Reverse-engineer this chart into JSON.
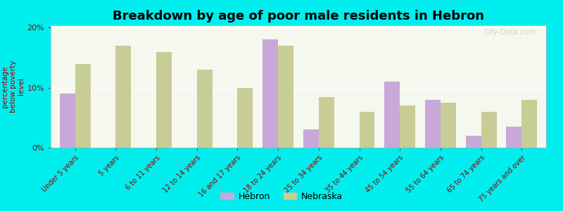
{
  "title": "Breakdown by age of poor male residents in Hebron",
  "ylabel": "percentage\nbelow poverty\nlevel",
  "categories": [
    "Under 5 years",
    "5 years",
    "6 to 11 years",
    "12 to 14 years",
    "16 and 17 years",
    "18 to 24 years",
    "25 to 34 years",
    "35 to 44 years",
    "45 to 54 years",
    "55 to 64 years",
    "65 to 74 years",
    "75 years and over"
  ],
  "hebron": [
    9.0,
    0.0,
    0.0,
    0.0,
    0.0,
    18.0,
    3.0,
    0.0,
    11.0,
    8.0,
    2.0,
    3.5
  ],
  "nebraska": [
    14.0,
    17.0,
    16.0,
    13.0,
    10.0,
    17.0,
    8.5,
    6.0,
    7.0,
    7.5,
    6.0,
    8.0
  ],
  "hebron_color": "#c8a8d8",
  "nebraska_color": "#c8cc96",
  "background_color": "#00eeee",
  "plot_bg_color": "#f5f8ee",
  "ylim": [
    0,
    20
  ],
  "ytick_labels": [
    "0%",
    "10%",
    "20%"
  ],
  "ytick_vals": [
    0,
    10,
    20
  ],
  "bar_width": 0.38,
  "title_fontsize": 13,
  "tick_fontsize": 7,
  "ylabel_fontsize": 7.5,
  "legend_labels": [
    "Hebron",
    "Nebraska"
  ],
  "watermark": "City-Data.com"
}
